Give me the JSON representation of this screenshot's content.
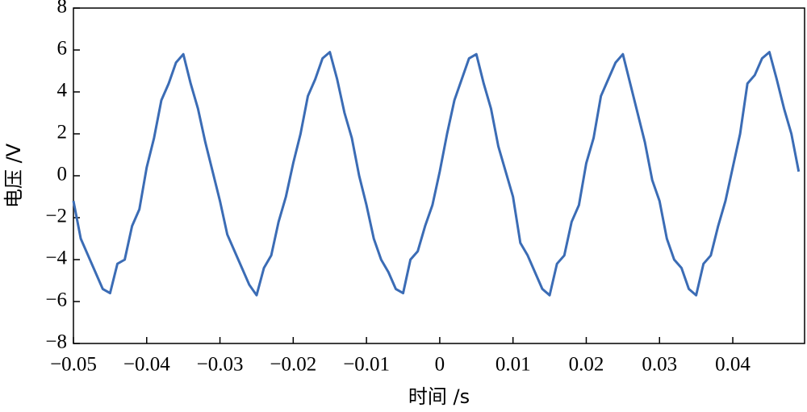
{
  "chart_data": {
    "type": "line",
    "x_label": "时间 /s",
    "y_label": "电压 /V",
    "color": "#3b6cb5",
    "x": [
      -0.05,
      -0.049,
      -0.048,
      -0.047,
      -0.046,
      -0.045,
      -0.044,
      -0.043,
      -0.042,
      -0.041,
      -0.04,
      -0.039,
      -0.038,
      -0.037,
      -0.036,
      -0.035,
      -0.034,
      -0.033,
      -0.032,
      -0.031,
      -0.03,
      -0.029,
      -0.028,
      -0.027,
      -0.026,
      -0.025,
      -0.024,
      -0.023,
      -0.022,
      -0.021,
      -0.02,
      -0.019,
      -0.018,
      -0.017,
      -0.016,
      -0.015,
      -0.014,
      -0.013,
      -0.012,
      -0.011,
      -0.01,
      -0.009,
      -0.008,
      -0.007,
      -0.006,
      -0.005,
      -0.004,
      -0.003,
      -0.002,
      -0.001,
      0,
      0.001,
      0.002,
      0.003,
      0.004,
      0.005,
      0.006,
      0.007,
      0.008,
      0.009,
      0.01,
      0.011,
      0.012,
      0.013,
      0.014,
      0.015,
      0.016,
      0.017,
      0.018,
      0.019,
      0.02,
      0.021,
      0.022,
      0.023,
      0.024,
      0.025,
      0.026,
      0.027,
      0.028,
      0.029,
      0.03,
      0.031,
      0.032,
      0.033,
      0.034,
      0.035,
      0.036,
      0.037,
      0.038,
      0.039,
      0.04,
      0.041,
      0.042,
      0.043,
      0.044,
      0.045,
      0.046,
      0.047,
      0.048,
      0.049
    ],
    "values": [
      -1.2,
      -3.0,
      -3.8,
      -4.6,
      -5.4,
      -5.6,
      -4.2,
      -4.0,
      -2.4,
      -1.6,
      0.4,
      1.8,
      3.6,
      4.4,
      5.4,
      5.8,
      4.4,
      3.2,
      1.6,
      0.2,
      -1.2,
      -2.8,
      -3.6,
      -4.4,
      -5.2,
      -5.7,
      -4.4,
      -3.8,
      -2.2,
      -1.0,
      0.6,
      2.0,
      3.8,
      4.6,
      5.6,
      5.9,
      4.6,
      3.0,
      1.8,
      0.0,
      -1.4,
      -3.0,
      -4.0,
      -4.6,
      -5.4,
      -5.6,
      -4.0,
      -3.6,
      -2.4,
      -1.4,
      0.2,
      2.0,
      3.6,
      4.6,
      5.6,
      5.8,
      4.4,
      3.2,
      1.4,
      0.2,
      -1.0,
      -3.2,
      -3.8,
      -4.6,
      -5.4,
      -5.7,
      -4.2,
      -3.8,
      -2.2,
      -1.4,
      0.6,
      1.8,
      3.8,
      4.6,
      5.4,
      5.8,
      4.4,
      3.0,
      1.6,
      -0.2,
      -1.2,
      -3.0,
      -4.0,
      -4.4,
      -5.4,
      -5.7,
      -4.2,
      -3.8,
      -2.4,
      -1.2,
      0.4,
      2.0,
      4.4,
      4.8,
      5.6,
      5.9,
      4.6,
      3.2,
      2.0,
      0.2
    ],
    "xlim": [
      -0.05,
      0.0498
    ],
    "xticks": [
      {
        "value": -0.05,
        "label": "−0.05"
      },
      {
        "value": -0.04,
        "label": "−0.04"
      },
      {
        "value": -0.03,
        "label": "−0.03"
      },
      {
        "value": -0.02,
        "label": "−0.02"
      },
      {
        "value": -0.01,
        "label": "−0.01"
      },
      0,
      0.01,
      0.02,
      0.03,
      0.04
    ],
    "ylim": [
      -8,
      8
    ],
    "yticks": [
      {
        "value": -8,
        "label": "−8"
      },
      {
        "value": -6,
        "label": "−6"
      },
      {
        "value": -4,
        "label": "−4"
      },
      {
        "value": -2,
        "label": "−2"
      },
      0,
      2,
      4,
      6,
      8
    ]
  }
}
